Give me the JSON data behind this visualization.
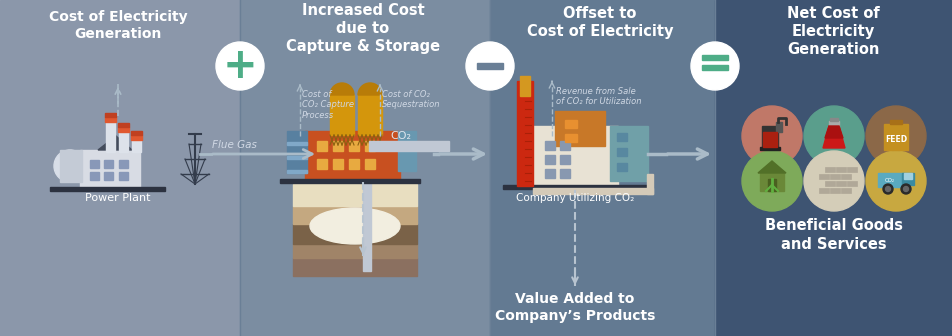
{
  "panel_colors": [
    "#8B97AA",
    "#7B8DA1",
    "#637A92",
    "#3E5472"
  ],
  "panel_boundaries": [
    0,
    240,
    490,
    715,
    953
  ],
  "title1": "Cost of Electricity\nGeneration",
  "title2": "Increased Cost\ndue to\nCapture & Storage",
  "title3": "Offset to\nCost of Electricity",
  "title4": "Net Cost of\nElectricity\nGeneration",
  "subtitle3": "Value Added to\nCompany’s Products",
  "subtitle4": "Beneficial Goods\nand Services",
  "label_pp": "Power Plant",
  "label_ccu": "Company Utilizing CO₂",
  "label_fluegas": "Flue Gas",
  "label_co2": "CO₂",
  "label_cost_capture": "Cost of\nCO₂ Capture\nProcess",
  "label_cost_seq": "Cost of CO₂\nSequestration",
  "label_revenue": "Revenue from Sale\nof CO₂ for Utilization",
  "white": "#FFFFFF",
  "light_text": "#DDE4EC",
  "italic_text": "#D0D8E4",
  "green": "#4EAD87",
  "arrow_gray": "#AABBC8",
  "dashed_gray": "#AABBC8",
  "icon_r1_colors": [
    "#C07868",
    "#5A9E8C",
    "#8B6848"
  ],
  "icon_r2_colors": [
    "#7EAA5A",
    "#D4CDB8",
    "#C8A840"
  ],
  "separator_color": "#6A7F96"
}
